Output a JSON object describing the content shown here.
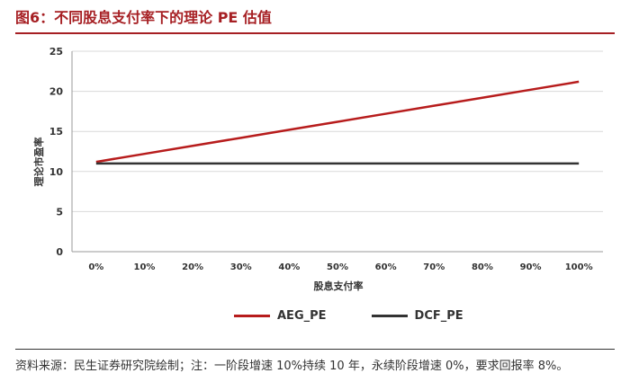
{
  "header": {
    "title": "图6：不同股息支付率下的理论 PE 估值"
  },
  "footer": {
    "source": "资料来源：民生证券研究院绘制；注：一阶段增速 10%持续 10 年，永续阶段增速 0%，要求回报率 8%。"
  },
  "colors": {
    "accent": "#a61f23",
    "aeg": "#b71c1c",
    "dcf": "#333333",
    "grid": "#d9d9d9"
  },
  "chart_data": {
    "type": "line",
    "title": "",
    "xlabel": "股息支付率",
    "ylabel": "理论市盈率",
    "categories": [
      "0%",
      "10%",
      "20%",
      "30%",
      "40%",
      "50%",
      "60%",
      "70%",
      "80%",
      "90%",
      "100%"
    ],
    "ylim": [
      0,
      25
    ],
    "yticks": [
      "0",
      "5",
      "10",
      "15",
      "20",
      "25"
    ],
    "grid": "horizontal",
    "legend": "bottom",
    "series": [
      {
        "name": "AEG_PE",
        "values": [
          11.2,
          12.2,
          13.2,
          14.2,
          15.2,
          16.2,
          17.2,
          18.2,
          19.2,
          20.2,
          21.2
        ]
      },
      {
        "name": "DCF_PE",
        "values": [
          11.0,
          11.0,
          11.0,
          11.0,
          11.0,
          11.0,
          11.0,
          11.0,
          11.0,
          11.0,
          11.0
        ]
      }
    ]
  }
}
